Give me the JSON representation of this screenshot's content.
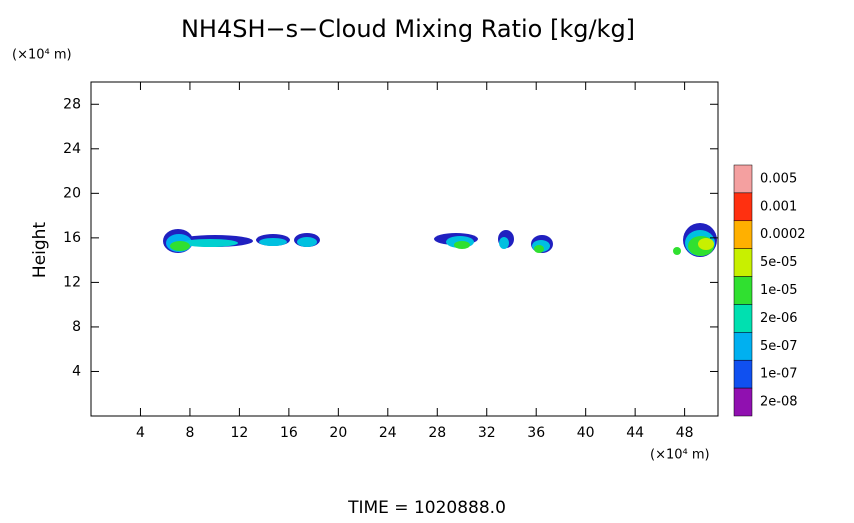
{
  "chart_data": {
    "type": "contour",
    "title": "NH4SH−s−Cloud Mixing Ratio [kg/kg]",
    "y_unit": "(×10⁴ m)",
    "x_unit": "(×10⁴ m)",
    "ylabel": "Height",
    "footer": "TIME  =  1020888.0",
    "xlim": [
      0,
      50.7
    ],
    "ylim": [
      0,
      30
    ],
    "xticks": [
      4,
      8,
      12,
      16,
      20,
      24,
      28,
      32,
      36,
      40,
      44,
      48
    ],
    "yticks": [
      4,
      8,
      12,
      16,
      20,
      24,
      28
    ],
    "colorbar": [
      {
        "value": 0.005,
        "color": "#f4a0a0"
      },
      {
        "value": 0.001,
        "color": "#ff3010"
      },
      {
        "value": 0.0002,
        "color": "#ffb000"
      },
      {
        "value": {
          "value": 5e-05,
          "label": "5e-05"
        },
        "color": "#c8f000"
      },
      {
        "value": {
          "value": 1e-05,
          "label": "1e-05"
        },
        "color": "#30e030"
      },
      {
        "value": {
          "value": 2e-06,
          "label": "2e-06"
        },
        "color": "#00e0b0"
      },
      {
        "value": {
          "value": 5e-07,
          "label": "5e-07"
        },
        "color": "#00b0f0"
      },
      {
        "value": {
          "value": 1e-07,
          "label": "1e-07"
        },
        "color": "#1050f0"
      },
      {
        "value": {
          "value": 2e-08,
          "label": "2e-08"
        },
        "color": "#9010b0"
      }
    ]
  }
}
